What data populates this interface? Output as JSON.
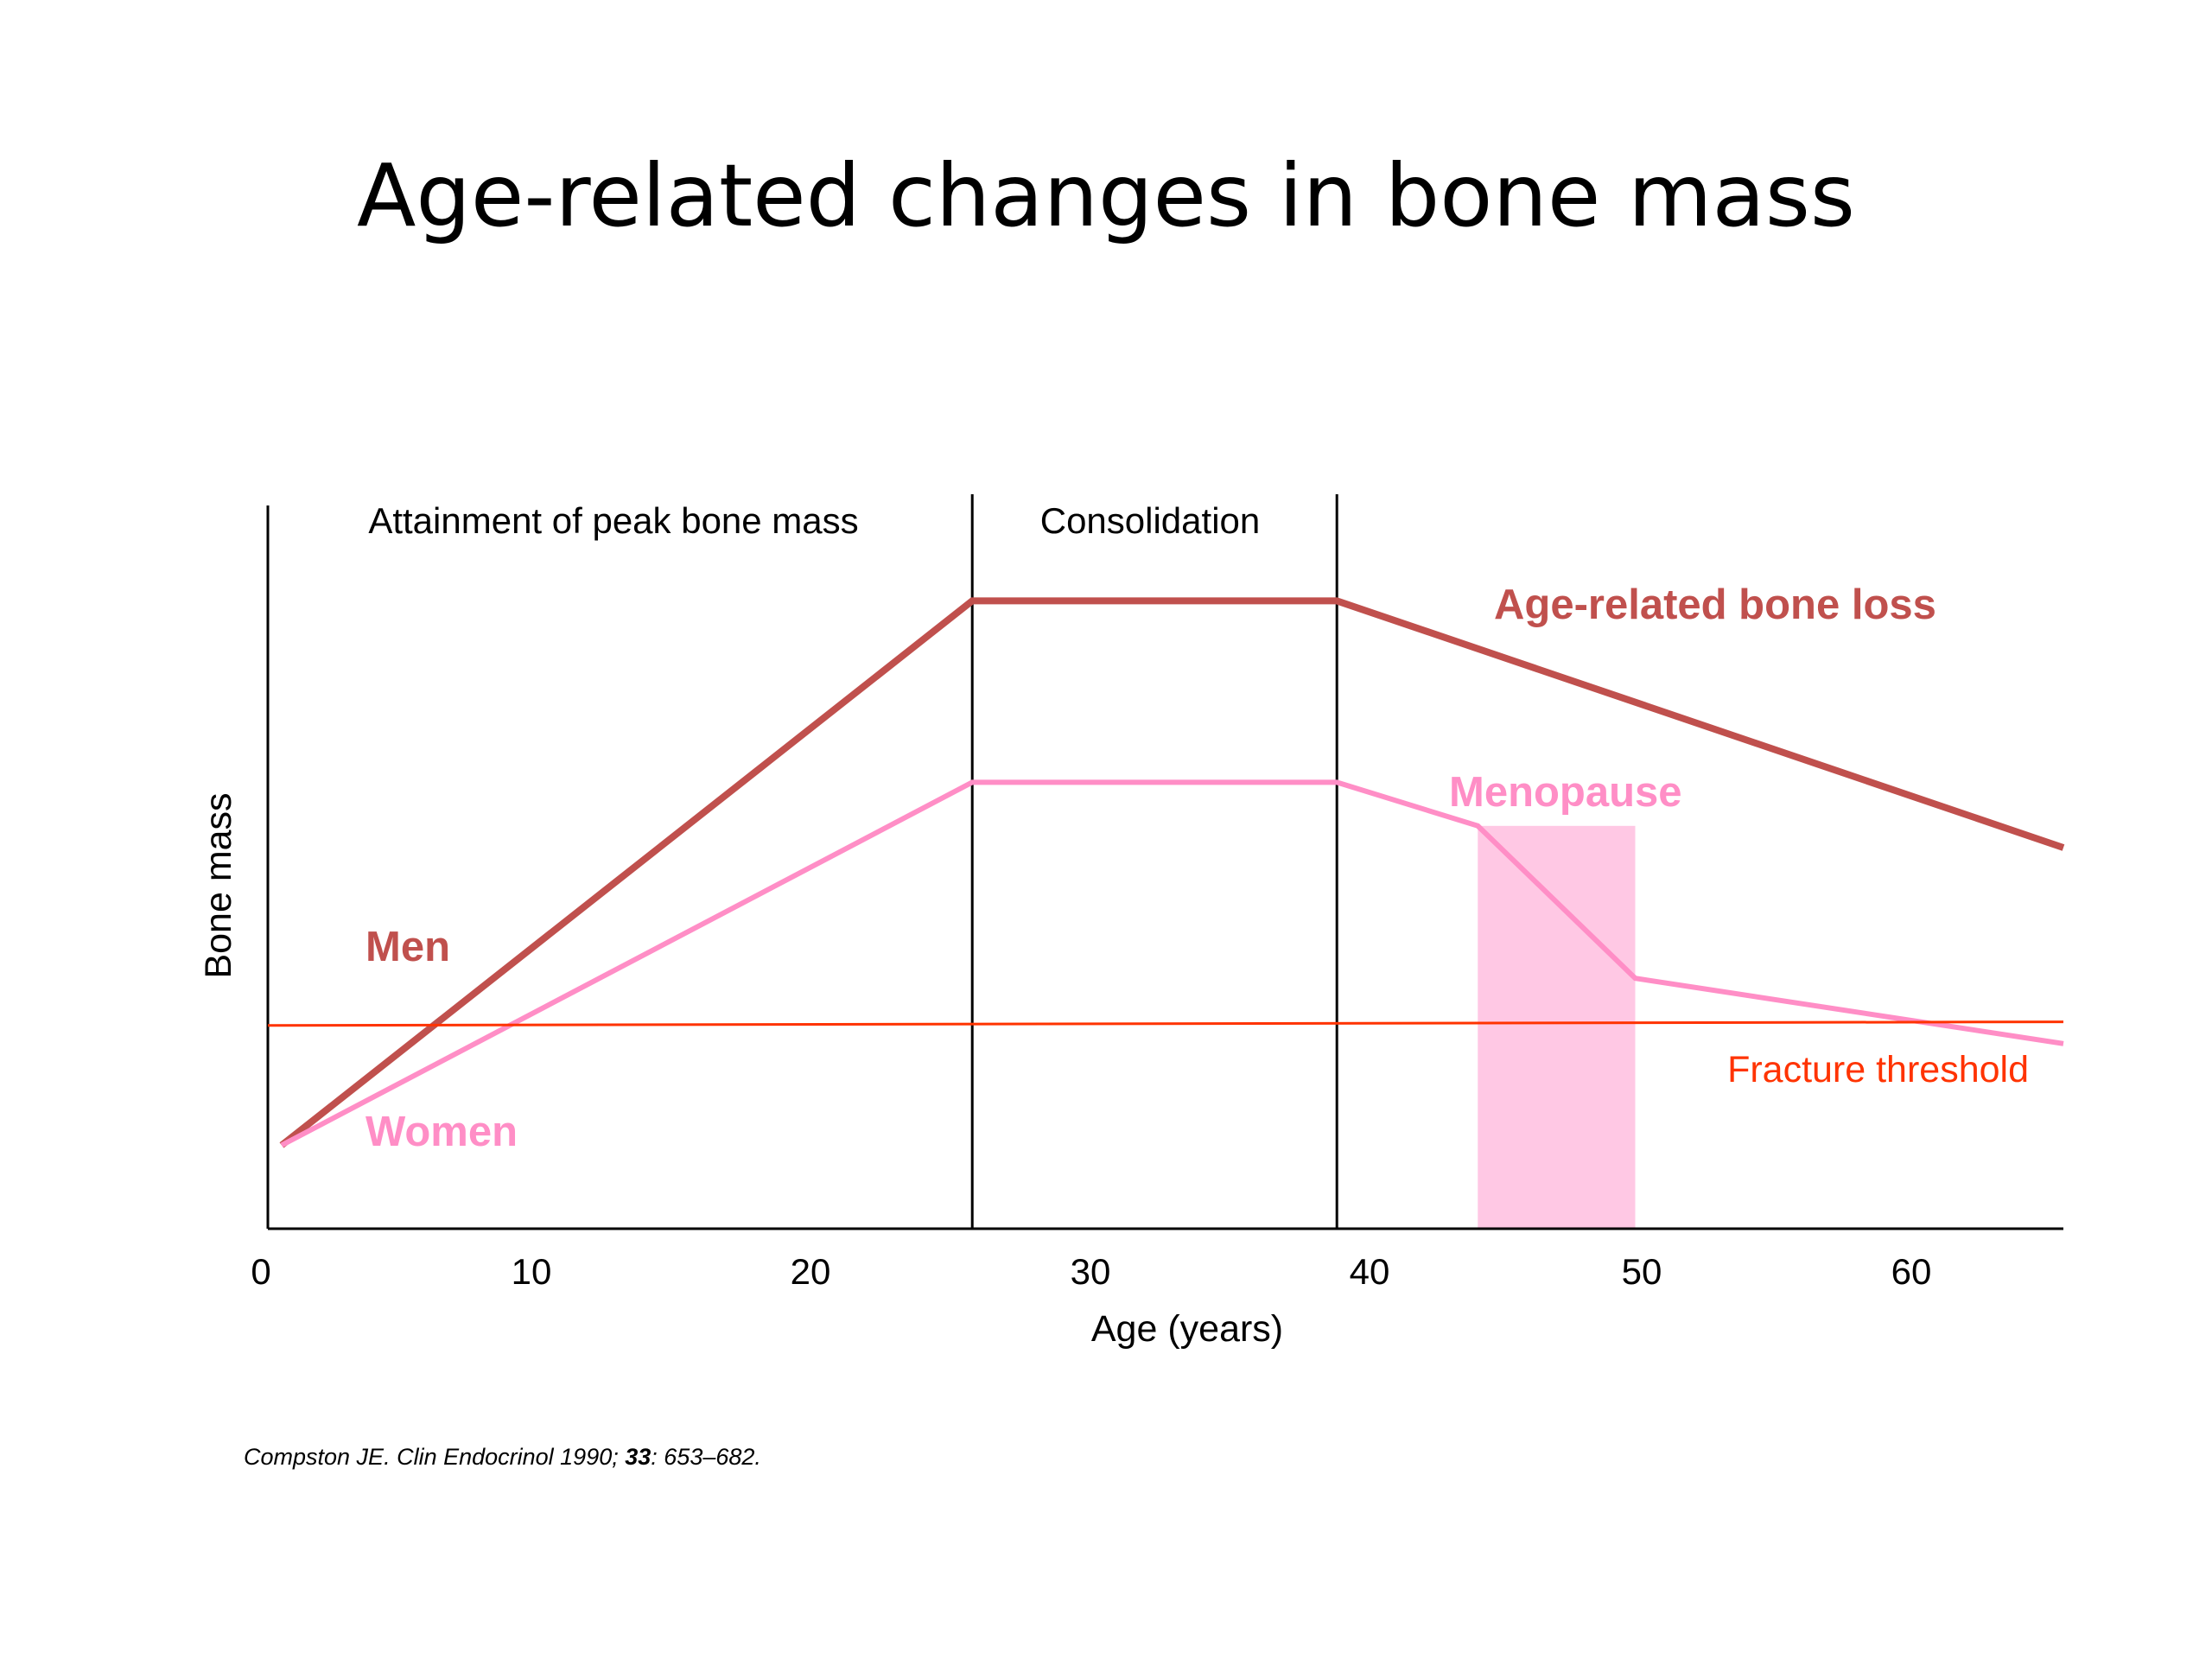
{
  "slide": {
    "title": "Age-related changes in bone mass",
    "citation": {
      "prefix": "Compston JE. Clin Endocrinol 1990; ",
      "volume": "33",
      "suffix": ": 653–682."
    }
  },
  "chart_data": {
    "type": "line",
    "title": "Age-related changes in bone mass",
    "xlabel": "Age (years)",
    "ylabel": "Bone mass",
    "xlim": [
      0,
      65
    ],
    "ylim": [
      0,
      100
    ],
    "x_ticks": [
      0,
      10,
      20,
      30,
      40,
      50,
      60
    ],
    "x_tick_labels": [
      "0",
      "10",
      "20",
      "30",
      "40",
      "50",
      "60"
    ],
    "y_ticks_shown": false,
    "grid": false,
    "phases": [
      {
        "label": "Attainment of peak bone mass",
        "start": 0,
        "end": 25.5
      },
      {
        "label": "Consolidation",
        "start": 25.5,
        "end": 38.7
      },
      {
        "label": "",
        "start": 38.7,
        "end": 65
      }
    ],
    "series": [
      {
        "name": "Men",
        "color": "#c0504d",
        "x": [
          0.5,
          25.5,
          38.7,
          65
        ],
        "y": [
          11.5,
          86.5,
          86.5,
          52.5
        ]
      },
      {
        "name": "Women",
        "color": "#ff8ec6",
        "x": [
          0.5,
          25.5,
          38.7,
          43.8,
          49.5,
          65
        ],
        "y": [
          11.5,
          61.5,
          61.5,
          55.5,
          34.5,
          25.5
        ]
      },
      {
        "name": "Fracture threshold",
        "color": "#ff3300",
        "x": [
          0,
          65
        ],
        "y": [
          28.0,
          28.5
        ]
      }
    ],
    "shaded_regions": [
      {
        "label": "Menopause",
        "x_start": 43.8,
        "x_end": 49.5,
        "y_start": 0,
        "y_end": 55.5,
        "color": "#ffc8e4"
      }
    ],
    "annotations": [
      {
        "text": "Age-related bone loss",
        "color": "#c0504d"
      },
      {
        "text": "Menopause",
        "color": "#ff8ec6"
      }
    ]
  }
}
